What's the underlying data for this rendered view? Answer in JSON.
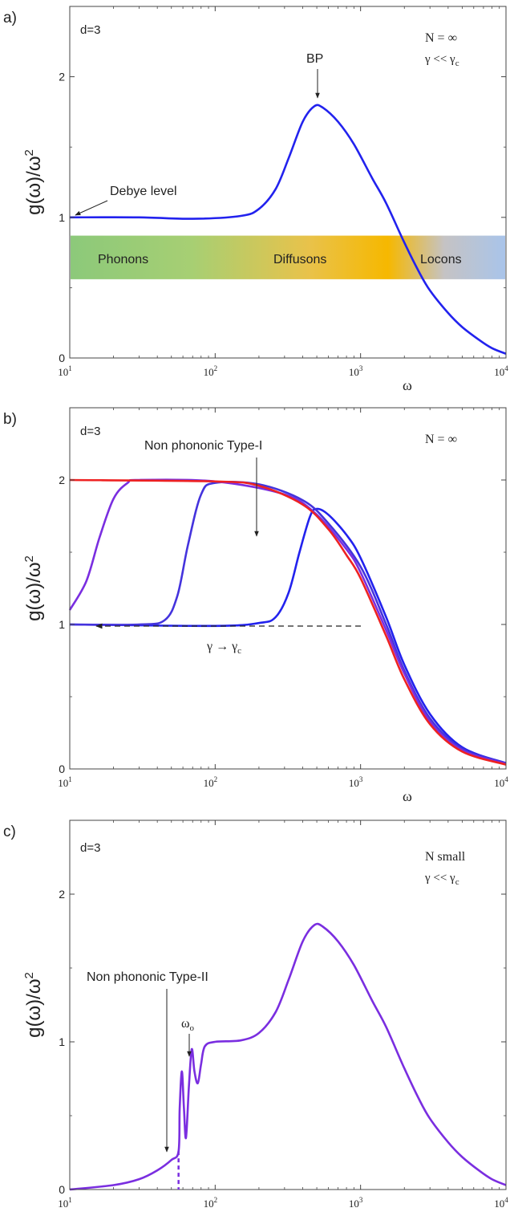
{
  "chart_data": [
    {
      "panel": "a)",
      "type": "line",
      "xscale": "log",
      "xlim": [
        10,
        10000
      ],
      "ylim": [
        0,
        2.5
      ],
      "xticks": [
        10,
        100,
        1000,
        10000
      ],
      "xtick_labels": [
        [
          "10",
          "1"
        ],
        [
          "10",
          "2"
        ],
        [
          "10",
          "3"
        ],
        [
          "10",
          "4"
        ]
      ],
      "yticks": [
        0,
        1,
        2
      ],
      "ytick_labels": [
        "0",
        "1",
        "2"
      ],
      "xlabel": "ω",
      "ylabel": "g(ω)/ω",
      "ylabel_sup": "2",
      "texts": {
        "d": "d=3",
        "n": "N  = ∞",
        "gamma": "γ << γ",
        "gamma_sub": "c",
        "bp": "BP",
        "debye": "Debye level"
      },
      "bands": [
        "Phonons",
        "Diffusons",
        "Locons"
      ],
      "band_colors": [
        "#8cc97a",
        "#f6b800",
        "#a9c4ea"
      ],
      "series": [
        {
          "color": "#2222ee",
          "points": [
            [
              10,
              1.0
            ],
            [
              30,
              1.0
            ],
            [
              70,
              0.99
            ],
            [
              150,
              1.01
            ],
            [
              200,
              1.06
            ],
            [
              260,
              1.2
            ],
            [
              320,
              1.42
            ],
            [
              400,
              1.68
            ],
            [
              480,
              1.79
            ],
            [
              550,
              1.78
            ],
            [
              700,
              1.68
            ],
            [
              900,
              1.52
            ],
            [
              1200,
              1.28
            ],
            [
              1500,
              1.1
            ],
            [
              2000,
              0.82
            ],
            [
              2500,
              0.62
            ],
            [
              3000,
              0.48
            ],
            [
              4000,
              0.32
            ],
            [
              5000,
              0.22
            ],
            [
              6500,
              0.13
            ],
            [
              8000,
              0.07
            ],
            [
              10000,
              0.03
            ]
          ]
        }
      ]
    },
    {
      "panel": "b)",
      "type": "line",
      "xscale": "log",
      "xlim": [
        10,
        10000
      ],
      "ylim": [
        0,
        2.5
      ],
      "xticks": [
        10,
        100,
        1000,
        10000
      ],
      "xtick_labels": [
        [
          "10",
          "1"
        ],
        [
          "10",
          "2"
        ],
        [
          "10",
          "3"
        ],
        [
          "10",
          "4"
        ]
      ],
      "yticks": [
        0,
        1,
        2
      ],
      "ytick_labels": [
        "0",
        "1",
        "2"
      ],
      "xlabel": "ω",
      "ylabel": "g(ω)/ω",
      "ylabel_sup": "2",
      "texts": {
        "d": "d=3",
        "n": "N  = ∞",
        "type1": "Non phononic Type-I",
        "gamma_arrow": "γ → γ",
        "gamma_sub": "c"
      },
      "series": [
        {
          "color": "#2222ee",
          "points": [
            [
              10,
              1.0
            ],
            [
              100,
              0.99
            ],
            [
              200,
              1.01
            ],
            [
              260,
              1.05
            ],
            [
              320,
              1.22
            ],
            [
              380,
              1.5
            ],
            [
              450,
              1.75
            ],
            [
              500,
              1.8
            ],
            [
              600,
              1.76
            ],
            [
              800,
              1.62
            ],
            [
              1000,
              1.46
            ],
            [
              1500,
              1.05
            ],
            [
              2000,
              0.72
            ],
            [
              3000,
              0.38
            ],
            [
              5000,
              0.15
            ],
            [
              10000,
              0.04
            ]
          ]
        },
        {
          "color": "#4433dd",
          "points": [
            [
              10,
              1.0
            ],
            [
              30,
              1.0
            ],
            [
              45,
              1.03
            ],
            [
              55,
              1.2
            ],
            [
              65,
              1.55
            ],
            [
              80,
              1.9
            ],
            [
              100,
              1.98
            ],
            [
              200,
              1.97
            ],
            [
              400,
              1.86
            ],
            [
              600,
              1.7
            ],
            [
              1000,
              1.4
            ],
            [
              1500,
              1.0
            ],
            [
              2000,
              0.68
            ],
            [
              3000,
              0.35
            ],
            [
              5000,
              0.14
            ],
            [
              10000,
              0.04
            ]
          ]
        },
        {
          "color": "#7a2ee0",
          "points": [
            [
              10,
              1.1
            ],
            [
              13,
              1.3
            ],
            [
              16,
              1.6
            ],
            [
              20,
              1.87
            ],
            [
              25,
              1.98
            ],
            [
              30,
              2.0
            ],
            [
              100,
              1.99
            ],
            [
              300,
              1.9
            ],
            [
              500,
              1.76
            ],
            [
              800,
              1.52
            ],
            [
              1000,
              1.36
            ],
            [
              1500,
              0.96
            ],
            [
              2000,
              0.66
            ],
            [
              3000,
              0.33
            ],
            [
              5000,
              0.13
            ],
            [
              10000,
              0.035
            ]
          ]
        },
        {
          "color": "#ee2222",
          "points": [
            [
              10,
              2.0
            ],
            [
              100,
              1.99
            ],
            [
              200,
              1.96
            ],
            [
              400,
              1.83
            ],
            [
              600,
              1.66
            ],
            [
              800,
              1.48
            ],
            [
              1000,
              1.32
            ],
            [
              1500,
              0.92
            ],
            [
              2000,
              0.62
            ],
            [
              3000,
              0.31
            ],
            [
              5000,
              0.12
            ],
            [
              10000,
              0.03
            ]
          ]
        }
      ]
    },
    {
      "panel": "c)",
      "type": "line",
      "xscale": "log",
      "xlim": [
        10,
        10000
      ],
      "ylim": [
        0,
        2.5
      ],
      "xticks": [
        10,
        100,
        1000,
        10000
      ],
      "xtick_labels": [
        [
          "10",
          "1"
        ],
        [
          "10",
          "2"
        ],
        [
          "10",
          "3"
        ],
        [
          "10",
          "4"
        ]
      ],
      "yticks": [
        0,
        1,
        2
      ],
      "ytick_labels": [
        "0",
        "1",
        "2"
      ],
      "xlabel": "ω",
      "ylabel": "g(ω)/ω",
      "ylabel_sup": "2",
      "texts": {
        "d": "d=3",
        "n": "N  small",
        "gamma": "γ << γ",
        "gamma_sub": "c",
        "type2": "Non phononic Type-II",
        "omega0": "ω",
        "omega0_sub": "o"
      },
      "series": [
        {
          "color": "#7a2ee0",
          "points": [
            [
              10,
              0.0
            ],
            [
              20,
              0.03
            ],
            [
              30,
              0.07
            ],
            [
              40,
              0.13
            ],
            [
              50,
              0.2
            ],
            [
              56,
              0.26
            ],
            [
              57,
              0.55
            ],
            [
              59,
              0.8
            ],
            [
              61,
              0.55
            ],
            [
              63,
              0.35
            ],
            [
              66,
              0.7
            ],
            [
              69,
              0.95
            ],
            [
              72,
              0.8
            ],
            [
              76,
              0.72
            ],
            [
              80,
              0.85
            ],
            [
              85,
              0.97
            ],
            [
              100,
              1.0
            ],
            [
              150,
              1.01
            ],
            [
              200,
              1.06
            ],
            [
              260,
              1.2
            ],
            [
              320,
              1.42
            ],
            [
              400,
              1.68
            ],
            [
              480,
              1.79
            ],
            [
              550,
              1.78
            ],
            [
              700,
              1.68
            ],
            [
              900,
              1.52
            ],
            [
              1200,
              1.28
            ],
            [
              1500,
              1.1
            ],
            [
              2000,
              0.82
            ],
            [
              2500,
              0.62
            ],
            [
              3000,
              0.48
            ],
            [
              4000,
              0.32
            ],
            [
              5000,
              0.22
            ],
            [
              6500,
              0.13
            ],
            [
              8000,
              0.07
            ],
            [
              10000,
              0.03
            ]
          ]
        }
      ]
    }
  ]
}
